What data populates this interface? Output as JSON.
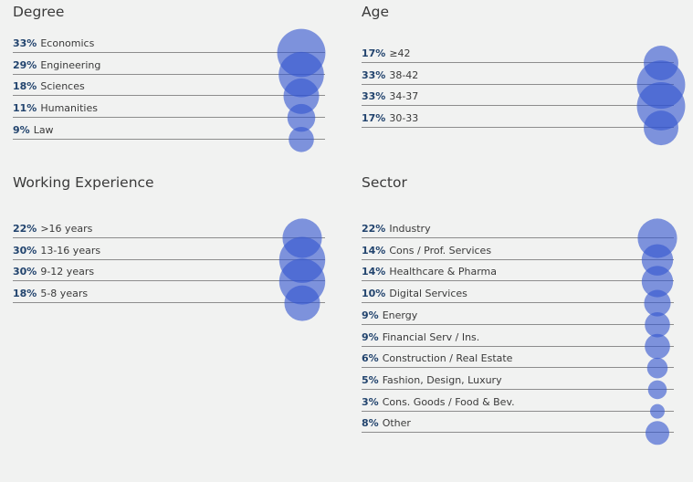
{
  "colors": {
    "bubble": "#3557cf",
    "pct_text": "#22446e",
    "line": "#8d8d8d",
    "background": "#f1f2f1"
  },
  "chart_data": [
    {
      "type": "bubble-list",
      "title": "Degree",
      "rows": [
        {
          "pct": "33%",
          "label": "Economics",
          "value": 33
        },
        {
          "pct": "29%",
          "label": "Engineering",
          "value": 29
        },
        {
          "pct": "18%",
          "label": "Sciences",
          "value": 18
        },
        {
          "pct": "11%",
          "label": "Humanities",
          "value": 11
        },
        {
          "pct": "9%",
          "label": "Law",
          "value": 9
        }
      ]
    },
    {
      "type": "bubble-list",
      "title": "Age",
      "rows": [
        {
          "pct": "17%",
          "label": "≥42",
          "value": 17
        },
        {
          "pct": "33%",
          "label": "38-42",
          "value": 33
        },
        {
          "pct": "33%",
          "label": "34-37",
          "value": 33
        },
        {
          "pct": "17%",
          "label": "30-33",
          "value": 17
        }
      ]
    },
    {
      "type": "bubble-list",
      "title": "Working Experience",
      "rows": [
        {
          "pct": "22%",
          "label": ">16 years",
          "value": 22
        },
        {
          "pct": "30%",
          "label": "13-16 years",
          "value": 30
        },
        {
          "pct": "30%",
          "label": "9-12 years",
          "value": 30
        },
        {
          "pct": "18%",
          "label": "5-8 years",
          "value": 18
        }
      ]
    },
    {
      "type": "bubble-list",
      "title": "Sector",
      "rows": [
        {
          "pct": "22%",
          "label": "Industry",
          "value": 22
        },
        {
          "pct": "14%",
          "label": "Cons / Prof. Services",
          "value": 14
        },
        {
          "pct": "14%",
          "label": "Healthcare & Pharma",
          "value": 14
        },
        {
          "pct": "10%",
          "label": "Digital Services",
          "value": 10
        },
        {
          "pct": "9%",
          "label": "Energy",
          "value": 9
        },
        {
          "pct": "9%",
          "label": "Financial Serv / Ins.",
          "value": 9
        },
        {
          "pct": "6%",
          "label": "Construction / Real Estate",
          "value": 6
        },
        {
          "pct": "5%",
          "label": "Fashion, Design, Luxury",
          "value": 5
        },
        {
          "pct": "3%",
          "label": "Cons. Goods / Food & Bev.",
          "value": 3
        },
        {
          "pct": "8%",
          "label": "Other",
          "value": 8
        }
      ]
    }
  ]
}
